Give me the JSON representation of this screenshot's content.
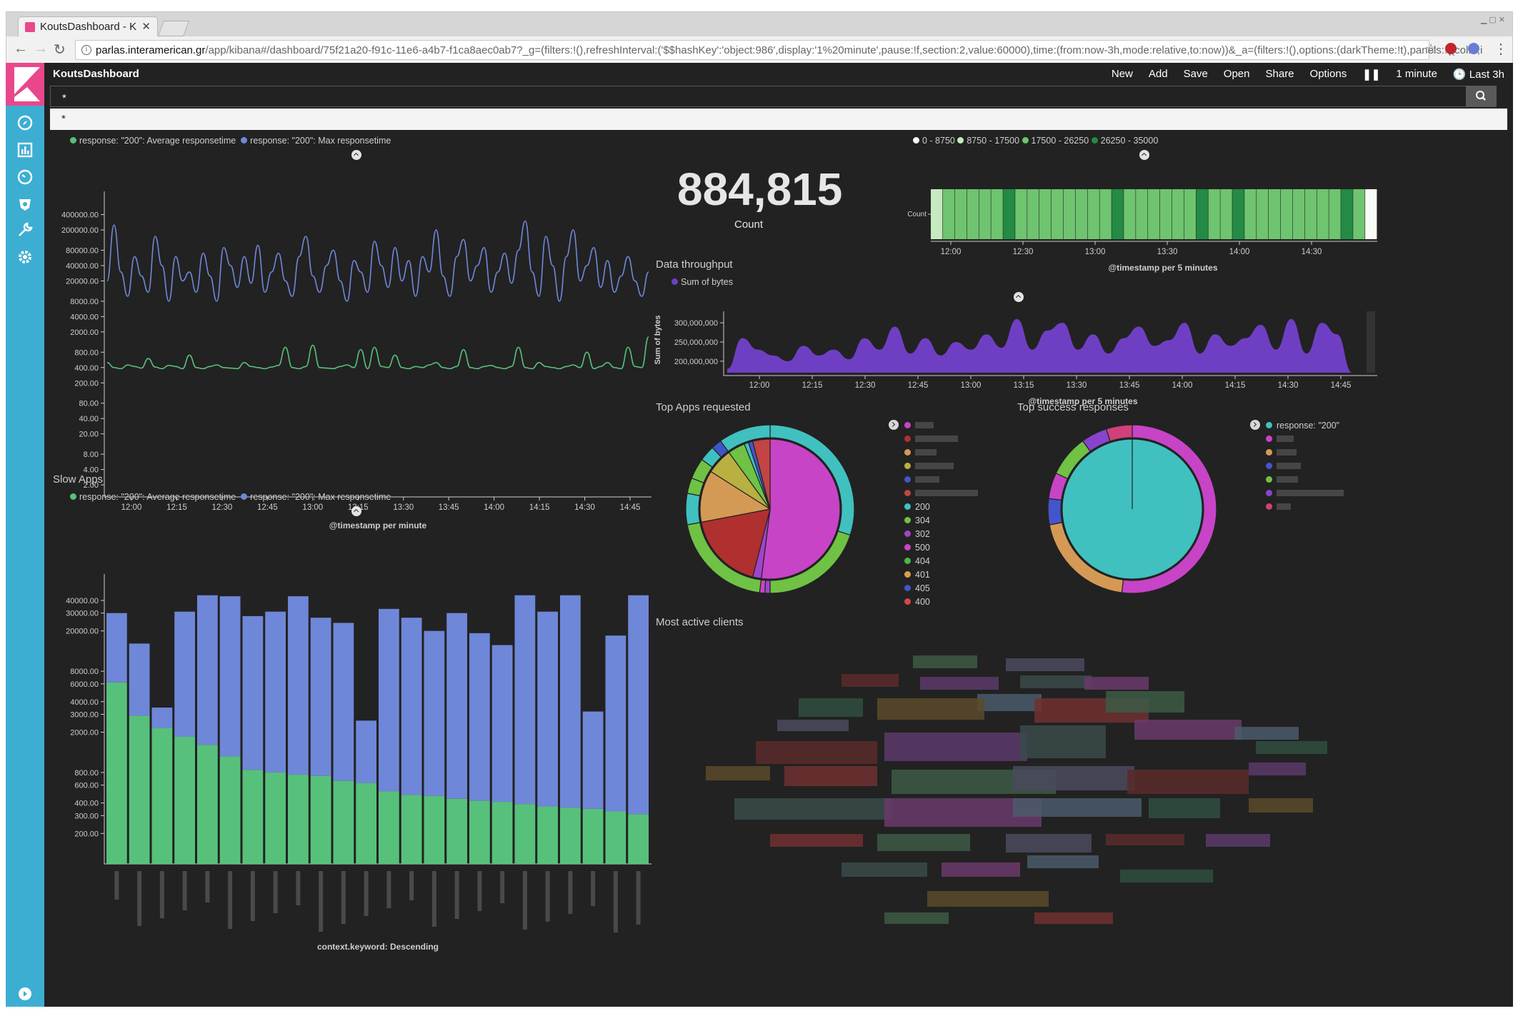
{
  "browser": {
    "tab_title": "KoutsDashboard - K",
    "url_host": "parlas.interamerican.gr",
    "url_path": "/app/kibana#/dashboard/75f21a20-f91c-11e6-a4b7-f1ca8aec0ab7?_g=(filters:!(),refreshInterval:('$$hashKey':'object:986',display:'1%20minute',pause:!f,section:2,value:60000),time:(from:now-3h,mode:relative,to:now))&_a=(filters:!(),options:(darkTheme:!t),panels:!((col:6,i"
  },
  "kibana": {
    "dashboard_title": "KoutsDashboard",
    "menu": [
      "New",
      "Add",
      "Save",
      "Open",
      "Share",
      "Options"
    ],
    "refresh_interval": "1 minute",
    "time_range": "Last 3h",
    "query_value": "*",
    "suggestion": "*",
    "sidebar_icons": [
      "discover-icon",
      "visualize-icon",
      "dashboard-icon",
      "timelion-icon",
      "dev-tools-icon",
      "management-icon"
    ]
  },
  "panels": {
    "slow_apps_title": "Slow Apps",
    "data_throughput_title": "Data throughput",
    "top_apps_title": "Top Apps requested",
    "top_success_title": "Top success responses",
    "most_active_title": "Most active clients",
    "count_value": "884,815",
    "count_label": "Count"
  },
  "response_legend": {
    "avg": "response: \"200\": Average responsetime",
    "max": "response: \"200\": Max responsetime",
    "avg_color": "#57c17b",
    "max_color": "#6f87d8"
  },
  "heatmap_legend": [
    "0 - 8750",
    "8750 - 17500",
    "17500 - 26250",
    "26250 - 35000"
  ],
  "heatmap_colors": [
    "#f7fcf5",
    "#c7e9c0",
    "#6fc46f",
    "#238b45"
  ],
  "throughput_legend": "Sum of bytes",
  "top_apps_legend": {
    "codes": [
      "200",
      "304",
      "302",
      "500",
      "404",
      "401",
      "405",
      "400"
    ],
    "code_colors": [
      "#41c0c0",
      "#6fc244",
      "#a044c8",
      "#c744c7",
      "#48b948",
      "#d8a04a",
      "#4055c8",
      "#d84848"
    ],
    "apps_colors": [
      "#c744c7",
      "#b03030",
      "#d49a55",
      "#b8b040",
      "#4455cc",
      "#c24444"
    ]
  },
  "success_legend": {
    "first": "response: \"200\"",
    "first_color": "#41c0c0",
    "colors": [
      "#c744c7",
      "#d49a55",
      "#4455cc",
      "#6fc244",
      "#8844cc",
      "#d0407a"
    ]
  },
  "chart_data": [
    {
      "type": "line",
      "legend": [
        "response: \"200\": Average responsetime",
        "response: \"200\": Max responsetime"
      ],
      "xlabel": "@timestamp per minute",
      "ylabel": "",
      "scale": "log",
      "x_ticks": [
        "12:00",
        "12:15",
        "12:30",
        "12:45",
        "13:00",
        "13:15",
        "13:30",
        "13:45",
        "14:00",
        "14:15",
        "14:30",
        "14:45"
      ],
      "y_ticks": [
        "400000.00",
        "200000.00",
        "80000.00",
        "40000.00",
        "20000.00",
        "8000.00",
        "4000.00",
        "2000.00",
        "800.00",
        "400.00",
        "200.00",
        "80.00",
        "40.00",
        "20.00",
        "8.00",
        "4.00",
        "2.00"
      ],
      "series": [
        {
          "name": "response: \"200\": Max responsetime",
          "values": [
            20000,
            250000,
            30000,
            10000,
            60000,
            25000,
            12000,
            150000,
            40000,
            8000,
            60000,
            20000,
            30000,
            12000,
            70000,
            25000,
            8000,
            90000,
            40000,
            15000,
            60000,
            18000,
            100000,
            12000,
            30000,
            70000,
            20000,
            10000,
            60000,
            150000,
            25000,
            12000,
            40000,
            80000,
            20000,
            8000,
            50000,
            30000,
            12000,
            120000,
            40000,
            15000,
            90000,
            20000,
            50000,
            10000,
            60000,
            30000,
            200000,
            25000,
            10000,
            60000,
            130000,
            20000,
            40000,
            90000,
            12000,
            30000,
            70000,
            18000,
            80000,
            300000,
            30000,
            10000,
            150000,
            40000,
            8000,
            60000,
            200000,
            20000,
            40000,
            90000,
            15000,
            50000,
            12000,
            25000,
            60000,
            20000,
            10000,
            30000
          ]
        },
        {
          "name": "response: \"200\": Average responsetime",
          "values": [
            500,
            400,
            380,
            450,
            420,
            390,
            600,
            410,
            380,
            440,
            420,
            380,
            700,
            400,
            380,
            420,
            450,
            400,
            390,
            380,
            500,
            420,
            400,
            380,
            410,
            440,
            1000,
            400,
            380,
            420,
            1100,
            400,
            390,
            380,
            420,
            450,
            400,
            900,
            380,
            1000,
            420,
            400,
            700,
            400,
            380,
            420,
            400,
            450,
            500,
            400,
            380,
            420,
            900,
            400,
            380,
            420,
            440,
            400,
            380,
            420,
            1000,
            400,
            380,
            500,
            420,
            400,
            380,
            420,
            450,
            400,
            800,
            380,
            420,
            500,
            400,
            380,
            1000,
            420,
            400,
            1600
          ]
        }
      ]
    },
    {
      "type": "bar",
      "title": "Slow Apps",
      "xlabel": "context.keyword: Descending",
      "scale": "log",
      "y_ticks": [
        "40000.00",
        "30000.00",
        "20000.00",
        "8000.00",
        "6000.00",
        "4000.00",
        "3000.00",
        "2000.00",
        "800.00",
        "600.00",
        "400.00",
        "300.00",
        "200.00"
      ],
      "categories": [
        "",
        "",
        "",
        "",
        "",
        "",
        "",
        "",
        "",
        "",
        "",
        "",
        "",
        "",
        "",
        "",
        "",
        "",
        "",
        "",
        "",
        "",
        "",
        ""
      ],
      "series": [
        {
          "name": "response: \"200\": Average responsetime",
          "values": [
            6200,
            2900,
            2200,
            1800,
            1500,
            1150,
            850,
            800,
            760,
            740,
            660,
            630,
            520,
            480,
            470,
            440,
            420,
            410,
            390,
            370,
            360,
            350,
            330,
            310
          ]
        },
        {
          "name": "response: \"200\": Max responsetime",
          "values": [
            30000,
            15000,
            3500,
            31000,
            45000,
            44000,
            28000,
            31000,
            44000,
            27000,
            24000,
            2600,
            33000,
            27000,
            20000,
            30000,
            19000,
            14500,
            45000,
            31000,
            45000,
            3200,
            18000,
            45000
          ]
        }
      ]
    },
    {
      "type": "heatmap",
      "xlabel": "@timestamp per 5 minutes",
      "ylabel": "Count",
      "x_ticks": [
        "12:00",
        "12:30",
        "13:00",
        "13:30",
        "14:00",
        "14:30"
      ],
      "values": [
        1,
        2,
        2,
        2,
        2,
        2,
        3,
        2,
        2,
        2,
        2,
        2,
        2,
        2,
        2,
        3,
        2,
        2,
        2,
        2,
        2,
        2,
        3,
        2,
        2,
        3,
        2,
        2,
        2,
        2,
        2,
        2,
        2,
        2,
        3,
        2,
        0
      ]
    },
    {
      "type": "area",
      "title": "Data throughput",
      "xlabel": "@timestamp per 5 minutes",
      "ylabel": "Sum of bytes",
      "x_ticks": [
        "12:00",
        "12:15",
        "12:30",
        "12:45",
        "13:00",
        "13:15",
        "13:30",
        "13:45",
        "14:00",
        "14:15",
        "14:30",
        "14:45"
      ],
      "y_ticks": [
        "300,000,000",
        "250,000,000",
        "200,000,000"
      ],
      "series": [
        {
          "name": "Sum of bytes",
          "values": [
            180000000,
            260000000,
            230000000,
            215000000,
            200000000,
            240000000,
            215000000,
            230000000,
            205000000,
            260000000,
            230000000,
            290000000,
            220000000,
            260000000,
            215000000,
            250000000,
            230000000,
            270000000,
            235000000,
            310000000,
            230000000,
            280000000,
            300000000,
            230000000,
            270000000,
            220000000,
            260000000,
            290000000,
            240000000,
            255000000,
            300000000,
            220000000,
            270000000,
            240000000,
            260000000,
            295000000,
            230000000,
            310000000,
            220000000,
            300000000,
            270000000,
            0
          ]
        }
      ]
    },
    {
      "type": "pie",
      "title": "Top Apps requested",
      "inner_ring_values": [
        52,
        2,
        18,
        12,
        6,
        4,
        1,
        1,
        4
      ],
      "outer_ring_values": [
        30,
        20,
        1,
        1,
        20,
        6,
        3,
        4,
        3,
        2,
        10
      ]
    },
    {
      "type": "pie",
      "title": "Top success responses",
      "legend": [
        "response: \"200\""
      ],
      "inner_ring_values": [
        100
      ],
      "outer_ring_values": [
        52,
        20,
        5,
        5,
        8,
        5,
        5
      ]
    }
  ]
}
